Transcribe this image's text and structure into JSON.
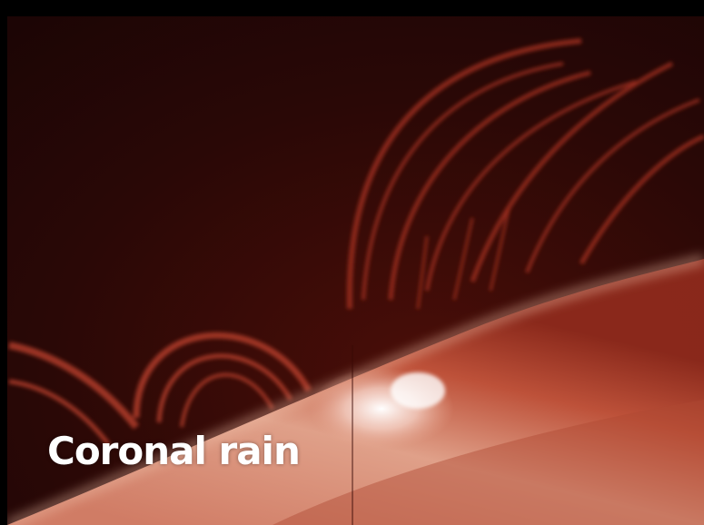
{
  "caption": "Coronal rain"
}
